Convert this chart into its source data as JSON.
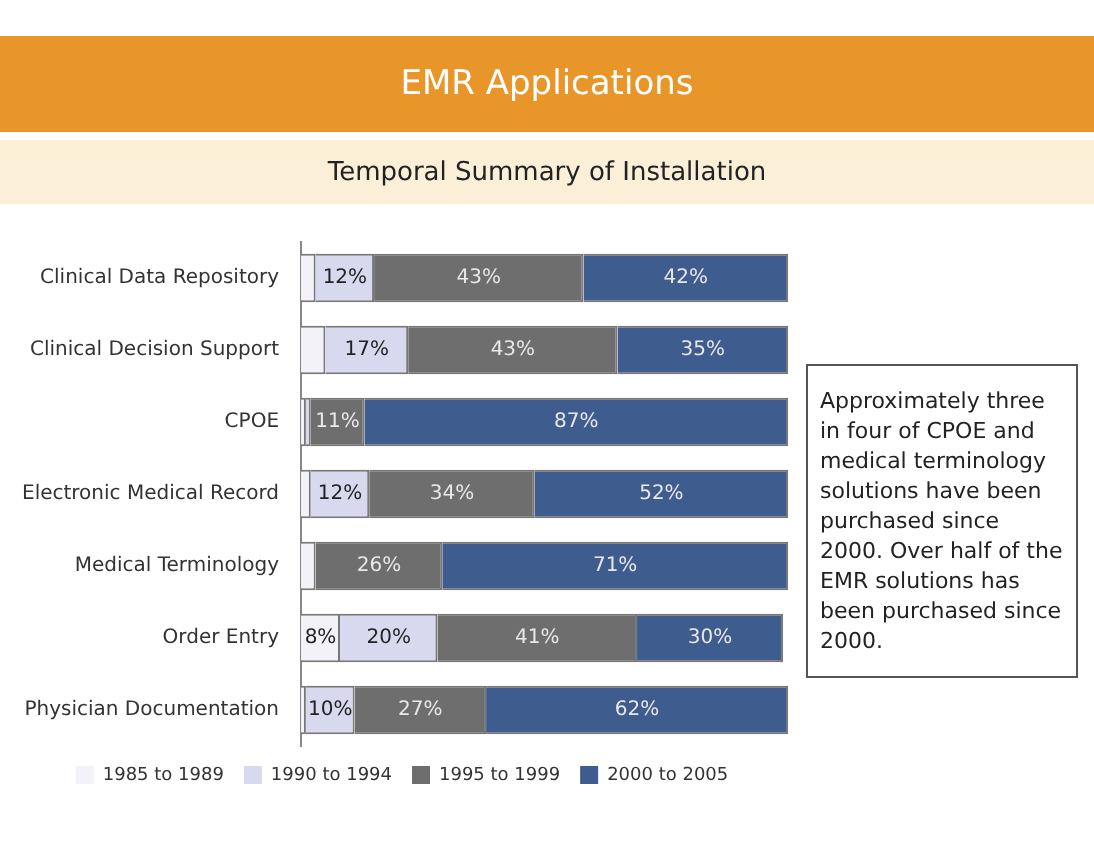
{
  "chart_data": {
    "type": "bar",
    "orientation": "horizontal",
    "stacked": true,
    "title": "EMR Applications",
    "subtitle": "Temporal Summary of Installation",
    "categories": [
      "Clinical Data Repository",
      "Clinical Decision Support",
      "CPOE",
      "Electronic Medical Record",
      "Medical Terminology",
      "Order Entry",
      "Physician Documentation"
    ],
    "series": [
      {
        "name": "1985 to 1989",
        "color": "#f2f2f8",
        "values": [
          3,
          5,
          1,
          2,
          3,
          8,
          1
        ],
        "value_labels": [
          null,
          null,
          null,
          null,
          null,
          "8%",
          null
        ]
      },
      {
        "name": "1990 to 1994",
        "color": "#d8d8ee",
        "values": [
          12,
          17,
          1,
          12,
          0,
          20,
          10
        ],
        "value_labels": [
          "12%",
          "17%",
          null,
          "12%",
          null,
          "20%",
          "10%"
        ]
      },
      {
        "name": "1995 to 1999",
        "color": "#6e6e6e",
        "values": [
          43,
          43,
          11,
          34,
          26,
          41,
          27
        ],
        "value_labels": [
          "43%",
          "43%",
          "11%",
          "34%",
          "26%",
          "41%",
          "27%"
        ]
      },
      {
        "name": "2000 to 2005",
        "color": "#3f5c8e",
        "values": [
          42,
          35,
          87,
          52,
          71,
          30,
          62
        ],
        "value_labels": [
          "42%",
          "35%",
          "87%",
          "52%",
          "71%",
          "30%",
          "62%"
        ]
      }
    ],
    "xlim": [
      0,
      100
    ],
    "tick_labels": "y",
    "legend": "bottom",
    "annotations": [
      "Approximately three in four of CPOE and medical terminology solutions have been purchased since 2000. Over half of the EMR solutions has been purchased since 2000."
    ]
  }
}
